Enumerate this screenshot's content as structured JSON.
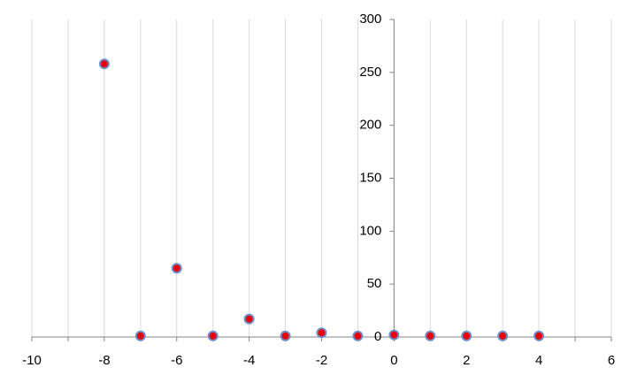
{
  "chart_data": {
    "type": "scatter",
    "x": [
      -8,
      -7,
      -6,
      -5,
      -4,
      -3,
      -2,
      -1,
      0,
      1,
      2,
      3,
      4
    ],
    "values": [
      258,
      1,
      65,
      1,
      17,
      1,
      4,
      1,
      2,
      1,
      1,
      1,
      1
    ],
    "color": "#e8000b",
    "edge_color": "#6f8fc8",
    "xlim": [
      -10,
      6
    ],
    "xticks": [
      -10,
      -8,
      -6,
      -4,
      -2,
      0,
      2,
      4,
      6
    ],
    "x_minor_ticks": [
      -9,
      -7,
      -5,
      -3,
      -1,
      1,
      3,
      5
    ],
    "ylim": [
      0,
      300
    ],
    "yticks": [
      0,
      50,
      100,
      150,
      200,
      250,
      300
    ],
    "grid": true
  }
}
